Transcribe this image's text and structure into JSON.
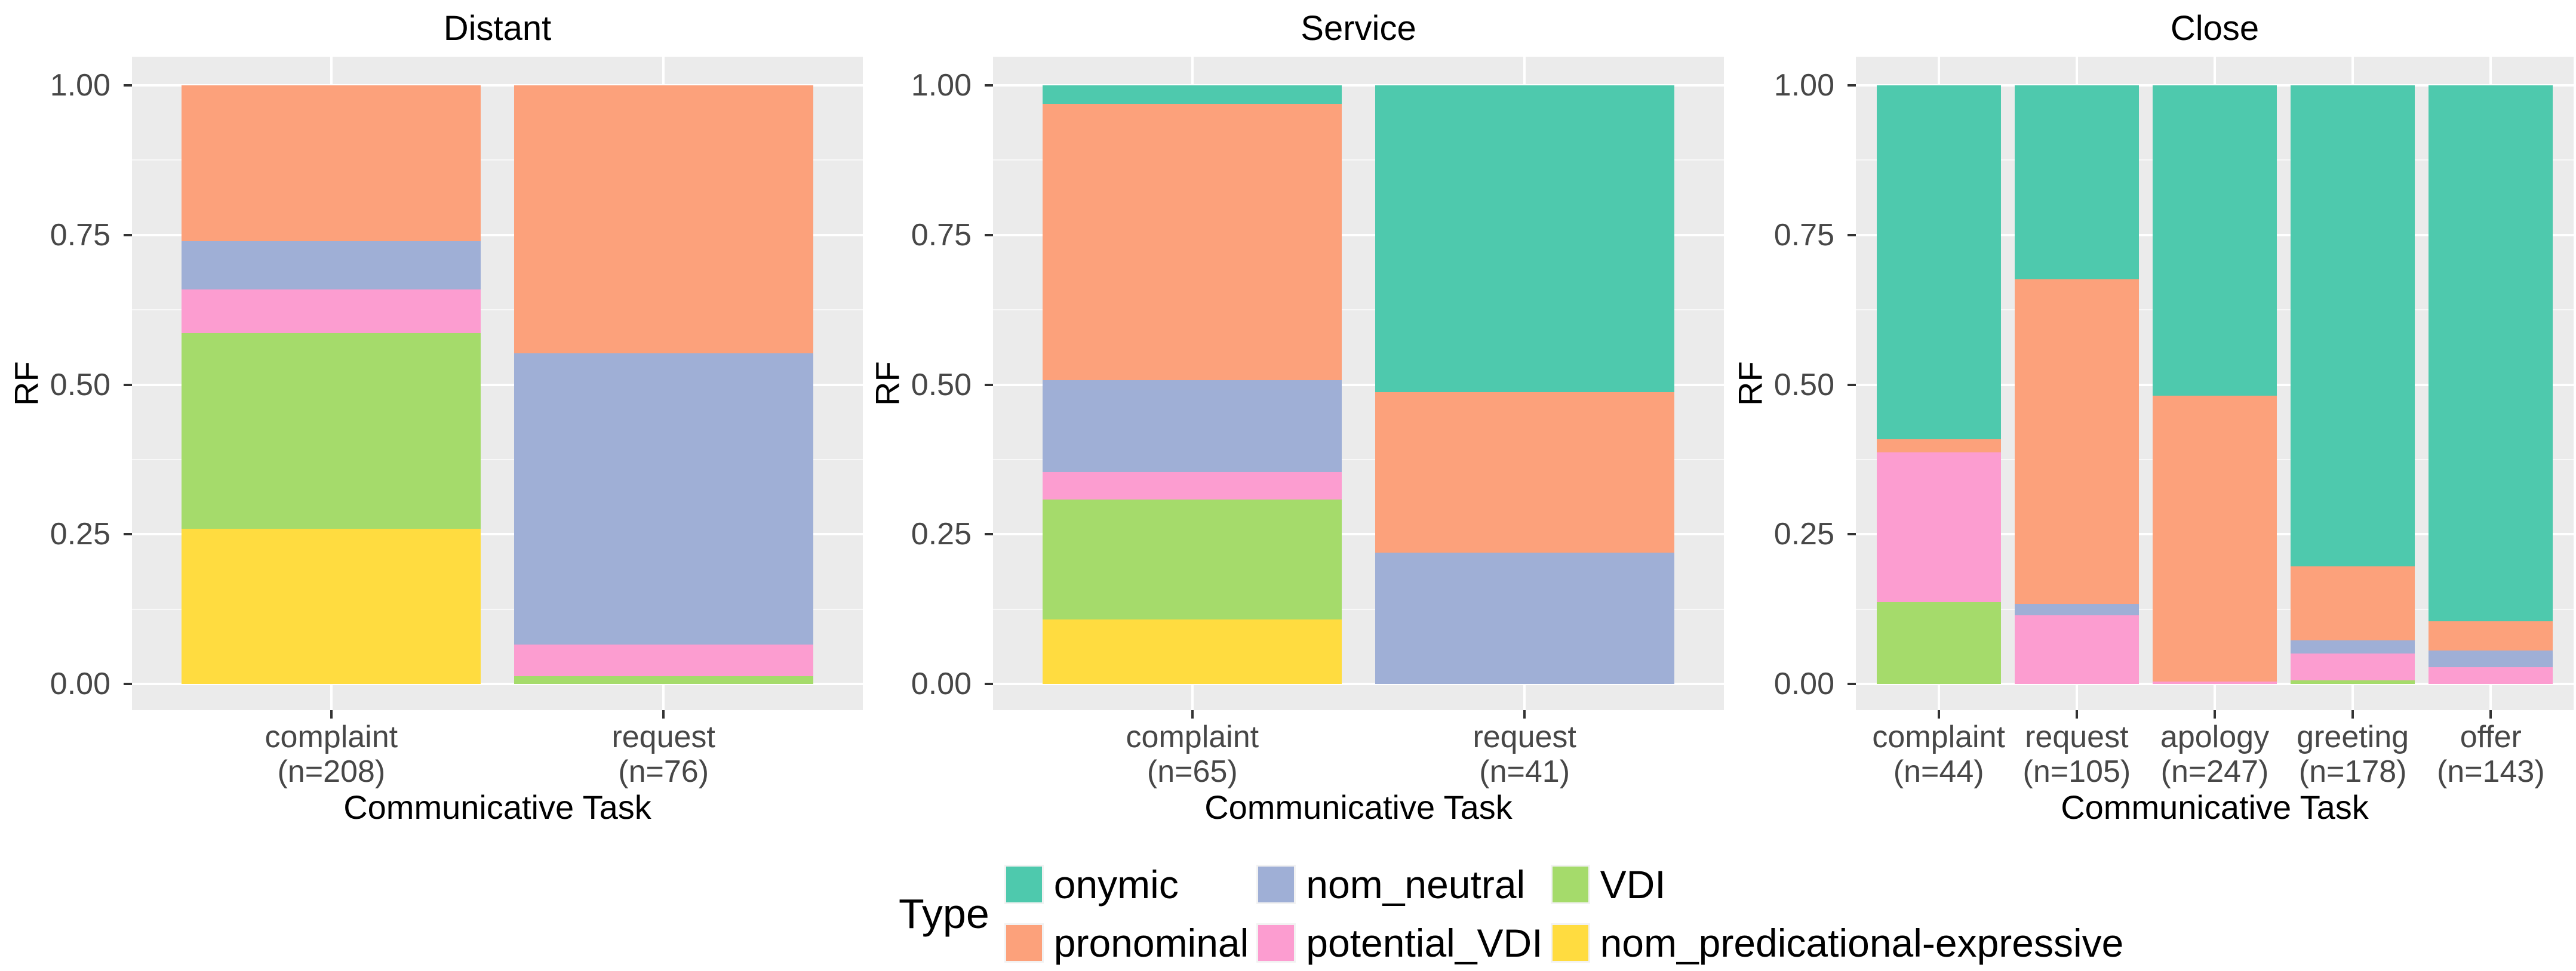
{
  "figure": {
    "background": "#FFFFFF",
    "panel_background": "#EBEBEB",
    "gridline_color": "#FFFFFF",
    "tick_mark_color": "#333333",
    "axis_text_color": "#474747",
    "title_color": "#000000"
  },
  "types": [
    {
      "name": "onymic",
      "color": "#4EC9AD"
    },
    {
      "name": "pronominal",
      "color": "#FCA17B"
    },
    {
      "name": "nom_neutral",
      "color": "#9FAFD6"
    },
    {
      "name": "potential_VDI",
      "color": "#FC9DD0"
    },
    {
      "name": "VDI",
      "color": "#A5DB6B"
    },
    {
      "name": "nom_predicational-expressive",
      "color": "#FFDC40"
    }
  ],
  "legend": {
    "title": "Type",
    "columns": [
      [
        "onymic",
        "pronominal"
      ],
      [
        "nom_neutral",
        "potential_VDI"
      ],
      [
        "VDI",
        "nom_predicational-expressive"
      ]
    ]
  },
  "axes": {
    "y_label": "RF",
    "x_label": "Communicative Task",
    "y_ticks": [
      "1.00",
      "0.75",
      "0.50",
      "0.25",
      "0.00"
    ],
    "y_tick_values": [
      1,
      0.75,
      0.5,
      0.25,
      0
    ],
    "y_minor_values": [
      0.875,
      0.625,
      0.375,
      0.125
    ],
    "ylim": [
      0,
      1
    ]
  },
  "chart_data": {
    "type": "bar",
    "stacked": true,
    "normalized": true,
    "ylabel": "RF",
    "xlabel": "Communicative Task",
    "stack_order_bottom_to_top": [
      "nom_predicational-expressive",
      "VDI",
      "potential_VDI",
      "nom_neutral",
      "pronominal",
      "onymic"
    ],
    "panels": [
      {
        "title": "Distant",
        "categories": [
          {
            "label": "complaint",
            "n_label": "(n=208)",
            "values": {
              "nom_predicational-expressive": 0.2596,
              "VDI": 0.3269,
              "potential_VDI": 0.0721,
              "nom_neutral": 0.0817,
              "pronominal": 0.2596,
              "onymic": 0
            }
          },
          {
            "label": "request",
            "n_label": "(n=76)",
            "values": {
              "nom_predicational-expressive": 0,
              "VDI": 0.0132,
              "potential_VDI": 0.0526,
              "nom_neutral": 0.4868,
              "pronominal": 0.4474,
              "onymic": 0
            }
          }
        ]
      },
      {
        "title": "Service",
        "categories": [
          {
            "label": "complaint",
            "n_label": "(n=65)",
            "values": {
              "nom_predicational-expressive": 0.1077,
              "VDI": 0.2,
              "potential_VDI": 0.0462,
              "nom_neutral": 0.1538,
              "pronominal": 0.4615,
              "onymic": 0.0308
            }
          },
          {
            "label": "request",
            "n_label": "(n=41)",
            "values": {
              "nom_predicational-expressive": 0,
              "VDI": 0,
              "potential_VDI": 0,
              "nom_neutral": 0.2195,
              "pronominal": 0.2683,
              "onymic": 0.5122
            }
          }
        ]
      },
      {
        "title": "Close",
        "categories": [
          {
            "label": "complaint",
            "n_label": "(n=44)",
            "values": {
              "nom_predicational-expressive": 0,
              "VDI": 0.1364,
              "potential_VDI": 0.25,
              "nom_neutral": 0,
              "pronominal": 0.0227,
              "onymic": 0.5909
            }
          },
          {
            "label": "request",
            "n_label": "(n=105)",
            "values": {
              "nom_predicational-expressive": 0,
              "VDI": 0,
              "potential_VDI": 0.1143,
              "nom_neutral": 0.019,
              "pronominal": 0.5429,
              "onymic": 0.3238
            }
          },
          {
            "label": "apology",
            "n_label": "(n=247)",
            "values": {
              "nom_predicational-expressive": 0,
              "VDI": 0,
              "potential_VDI": 0.004,
              "nom_neutral": 0,
              "pronominal": 0.4777,
              "onymic": 0.5182
            }
          },
          {
            "label": "greeting",
            "n_label": "(n=178)",
            "values": {
              "nom_predicational-expressive": 0,
              "VDI": 0.0056,
              "potential_VDI": 0.0449,
              "nom_neutral": 0.0225,
              "pronominal": 0.1236,
              "onymic": 0.8034
            }
          },
          {
            "label": "offer",
            "n_label": "(n=143)",
            "values": {
              "nom_predicational-expressive": 0,
              "VDI": 0,
              "potential_VDI": 0.028,
              "nom_neutral": 0.028,
              "pronominal": 0.049,
              "onymic": 0.8951
            }
          }
        ]
      }
    ]
  }
}
